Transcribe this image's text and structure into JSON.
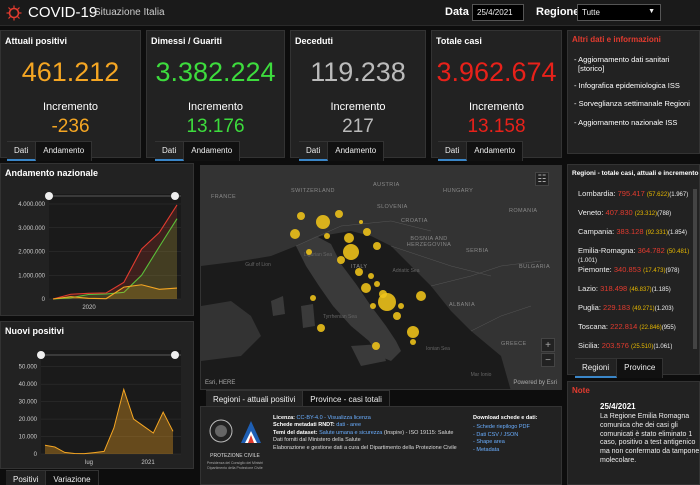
{
  "header": {
    "title": "COVID-19",
    "subtitle": "Situazione Italia",
    "date_label": "Data",
    "date_value": "25/4/2021",
    "region_label": "Regione",
    "region_value": "Tutte"
  },
  "kpis": [
    {
      "title": "Attuali positivi",
      "value": "461.212",
      "inc_label": "Incremento",
      "inc": "-236",
      "color": "#f5a623",
      "inc_color": "#f5a623"
    },
    {
      "title": "Dimessi / Guariti",
      "value": "3.382.224",
      "inc_label": "Incremento",
      "inc": "13.176",
      "color": "#3ddc3d",
      "inc_color": "#3ddc3d"
    },
    {
      "title": "Deceduti",
      "value": "119.238",
      "inc_label": "Incremento",
      "inc": "217",
      "color": "#bbbbbb",
      "inc_color": "#bbbbbb"
    },
    {
      "title": "Totale casi",
      "value": "3.962.674",
      "inc_label": "Incremento",
      "inc": "13.158",
      "color": "#e8211a",
      "inc_color": "#e8211a"
    }
  ],
  "kpi_tabs": {
    "dati": "Dati",
    "andamento": "Andamento"
  },
  "links": {
    "header": "Altri dati e informazioni",
    "items": [
      "- Aggiornamento dati sanitari",
      "[storico]",
      "- Infografica epidemiologica ISS",
      "- Sorveglianza settimanale Regioni",
      "- Aggiornamento nazionale ISS"
    ]
  },
  "andamento": {
    "title": "Andamento nazionale",
    "yticks": [
      "4.000.000",
      "3.000.000",
      "2.000.000",
      "1.000.000",
      "0"
    ],
    "xtick": "2020"
  },
  "nuovi": {
    "title": "Nuovi positivi",
    "yticks": [
      "50.000",
      "40.000",
      "30.000",
      "20.000",
      "10.000",
      "0"
    ],
    "xticks": [
      "lug",
      "2021"
    ],
    "tab_positivi": "Positivi",
    "tab_variazione": "Variazione"
  },
  "chart_data": [
    {
      "type": "line",
      "ylim": [
        0,
        4000000
      ],
      "x": [
        "2020-02",
        "2020-04",
        "2020-06",
        "2020-08",
        "2020-10",
        "2020-12",
        "2021-02",
        "2021-04"
      ],
      "series": [
        {
          "color": "#3ddc3d",
          "values": [
            0,
            50000,
            190000,
            210000,
            280000,
            1000000,
            2200000,
            3380000
          ]
        },
        {
          "color": "#e23b2f",
          "values": [
            0,
            200000,
            240000,
            255000,
            700000,
            2100000,
            2800000,
            3960000
          ]
        },
        {
          "color": "#f5a623",
          "values": [
            0,
            100000,
            30000,
            15000,
            500000,
            600000,
            410000,
            460000
          ]
        }
      ]
    },
    {
      "type": "area",
      "ylim": [
        0,
        55000
      ],
      "x": [
        "2020-03",
        "2020-04",
        "2020-05",
        "2020-06",
        "2020-07",
        "2020-08",
        "2020-09",
        "2020-10",
        "2020-11",
        "2020-12",
        "2021-01",
        "2021-02",
        "2021-03",
        "2021-04"
      ],
      "values": [
        5000,
        4000,
        900,
        300,
        200,
        800,
        1500,
        15000,
        37000,
        20000,
        16000,
        12000,
        24000,
        13000
      ],
      "color": "#f5a623"
    }
  ],
  "map": {
    "countries": [
      "FRANCE",
      "SWITZERLAND",
      "AUSTRIA",
      "HUNGARY",
      "SLOVENIA",
      "CROATIA",
      "BOSNIA AND HERZEGOVINA",
      "SERBIA",
      "ROMANIA",
      "BULGARIA",
      "ALBANIA",
      "ITALY",
      "GREECE"
    ],
    "seas": [
      "Gulf of Lion",
      "Ligurian Sea",
      "Adriatic Sea",
      "Tyrrhenian Sea",
      "Ionian Sea",
      "Mar Ionio"
    ],
    "credit_left": "Esri, HERE",
    "credit_right": "Powered by Esri"
  },
  "map_tabs": {
    "regioni": "Regioni - attuali positivi",
    "province": "Province - casi totali"
  },
  "regions": {
    "header": "Regioni - totale casi, attuali e incremento",
    "rows": [
      {
        "name": "Lombardia:",
        "v1": "795.417",
        "v2": "(57.622)",
        "v3": "(1.967)"
      },
      {
        "name": "Veneto:",
        "v1": "407.830",
        "v2": "(23.312)",
        "v3": "(788)"
      },
      {
        "name": "Campania:",
        "v1": "383.128",
        "v2": "(92.331)",
        "v3": "(1.854)"
      },
      {
        "name": "Emilia-Romagna:",
        "v1": "364.782",
        "v2": "(50.481)",
        "v3": "(1.001)"
      },
      {
        "name": "Piemonte:",
        "v1": "340.853",
        "v2": "(17.473)",
        "v3": "(978)"
      },
      {
        "name": "Lazio:",
        "v1": "318.498",
        "v2": "(46.837)",
        "v3": "(1.185)"
      },
      {
        "name": "Puglia:",
        "v1": "229.183",
        "v2": "(49.271)",
        "v3": "(1.203)"
      },
      {
        "name": "Toscana:",
        "v1": "222.814",
        "v2": "(22.846)",
        "v3": "(955)"
      },
      {
        "name": "Sicilia:",
        "v1": "203.576",
        "v2": "(25.510)",
        "v3": "(1.061)"
      }
    ],
    "tab_regioni": "Regioni",
    "tab_province": "Province"
  },
  "info": {
    "licenza_l": "Licenza:",
    "licenza_v": "CC-BY-4.0",
    "licenza_link": "- Visualizza licenza",
    "schede_l": "Schede metadati RNDT:",
    "schede_link": "dati - aree",
    "temi_l": "Temi del dataset:",
    "temi_link": "Salute umana e sicurezza",
    "temi_tail": "(Inspire) - ISO 19115: Salute",
    "fonte": "Dati forniti dal Ministero della Salute",
    "elab": "Elaborazione e gestione dati a cura del Dipartimento della Protezione Civile",
    "pc_name": "PROTEZIONE CIVILE",
    "pc_sub": "Presidenza del Consiglio dei Ministri Dipartimento della Protezione Civile",
    "download_h": "Download schede e dati:",
    "downloads": [
      "- Schede riepilogo PDF",
      "- Dati CSV / JSON",
      "- Shape area",
      "- Metadata"
    ]
  },
  "note": {
    "header": "Note",
    "date": "25/4/2021",
    "text": "La Regione Emilia Romagna comunica che dei casi gli comunicati è stato eliminato 1 caso, positivo a test antigenico ma non confermato da tampone molecolare."
  }
}
